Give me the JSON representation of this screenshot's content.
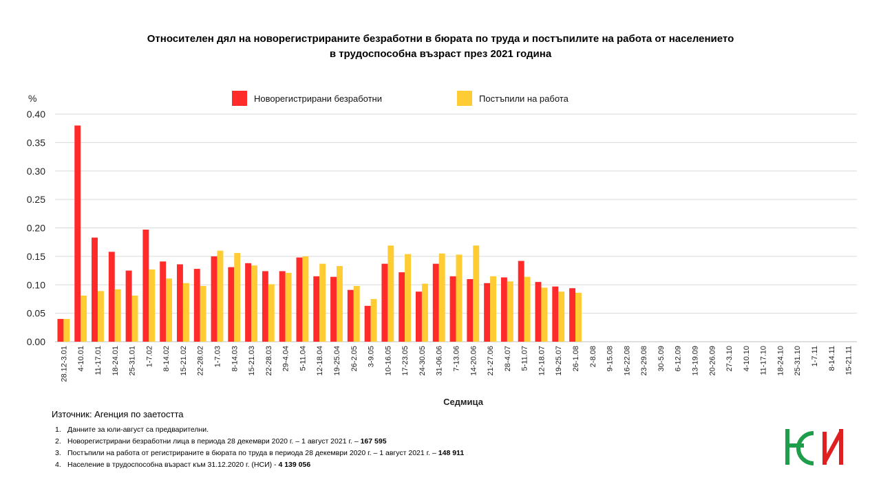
{
  "title_line1": "Относителен дял на новорегистрираните безработни в бюрата по труда и постъпилите на работа от населението",
  "title_line2": "в трудоспособна възраст през 2021 година",
  "source": "Източник: Агенция по заетостта",
  "notes": [
    {
      "num": "1.",
      "text": "Данните за юли-август са предварителни.",
      "bold": ""
    },
    {
      "num": "2.",
      "text": "Новорегистрирани безработни лица в периода 28 декември  2020 г. – 1 август 2021 г. – ",
      "bold": "167 595"
    },
    {
      "num": "3.",
      "text": "Постъпили на работа от регистрираните в бюрата по труда в периода 28 декември  2020 г. – 1 август 2021 г. – ",
      "bold": "148 911"
    },
    {
      "num": "4.",
      "text": "Население в трудоспособна възраст към 31.12.2020 г. (НСИ)  - ",
      "bold": "4 139 056"
    }
  ],
  "colors": {
    "unemployed": "#ff2b2b",
    "employed": "#ffcc33",
    "grid": "#d9d9d9",
    "logo_green": "#1e9e4a",
    "logo_red": "#e02020"
  },
  "chart_data": {
    "type": "bar",
    "unit": "%",
    "xlabel": "Седмица",
    "ylim": [
      0,
      0.4
    ],
    "yticks": [
      "0.00",
      "0.05",
      "0.10",
      "0.15",
      "0.20",
      "0.25",
      "0.30",
      "0.35",
      "0.40"
    ],
    "legend_position": "top-center",
    "grid": true,
    "categories": [
      "28.12-3.01",
      "4-10.01",
      "11-17.01",
      "18-24.01",
      "25-31.01",
      "1-7.02",
      "8-14.02",
      "15-21.02",
      "22-28.02",
      "1-7.03",
      "8-14.03",
      "15-21.03",
      "22-28.03",
      "29-4.04",
      "5-11.04",
      "12-18.04",
      "19-25.04",
      "26-2.05",
      "3-9.05",
      "10-16.05",
      "17-23.05",
      "24-30.05",
      "31-06.06",
      "7-13.06",
      "14-20.06",
      "21-27.06",
      "28-4.07",
      "5-11.07",
      "12-18.07",
      "19-25.07",
      "26-1.08",
      "2-8.08",
      "9-15.08",
      "16-22.08",
      "23-29.08",
      "30-5.09",
      "6-12.09",
      "13-19.09",
      "20-26.09",
      "27-3.10",
      "4-10.10",
      "11-17.10",
      "18-24.10",
      "25-31.10",
      "1-7.11",
      "8-14.11",
      "15-21.11"
    ],
    "series": [
      {
        "name": "Новорегистрирани безработни",
        "values": [
          0.04,
          0.38,
          0.183,
          0.158,
          0.125,
          0.197,
          0.141,
          0.136,
          0.128,
          0.15,
          0.131,
          0.138,
          0.124,
          0.124,
          0.148,
          0.115,
          0.114,
          0.091,
          0.063,
          0.137,
          0.122,
          0.088,
          0.137,
          0.115,
          0.11,
          0.103,
          0.113,
          0.142,
          0.105,
          0.097,
          0.094,
          null,
          null,
          null,
          null,
          null,
          null,
          null,
          null,
          null,
          null,
          null,
          null,
          null,
          null,
          null,
          null
        ]
      },
      {
        "name": "Постъпили на работа",
        "values": [
          0.04,
          0.081,
          0.089,
          0.092,
          0.081,
          0.127,
          0.111,
          0.103,
          0.098,
          0.16,
          0.156,
          0.134,
          0.101,
          0.121,
          0.15,
          0.137,
          0.133,
          0.098,
          0.075,
          0.169,
          0.154,
          0.102,
          0.155,
          0.153,
          0.169,
          0.115,
          0.106,
          0.114,
          0.095,
          0.088,
          0.086,
          null,
          null,
          null,
          null,
          null,
          null,
          null,
          null,
          null,
          null,
          null,
          null,
          null,
          null,
          null,
          null
        ]
      }
    ]
  }
}
